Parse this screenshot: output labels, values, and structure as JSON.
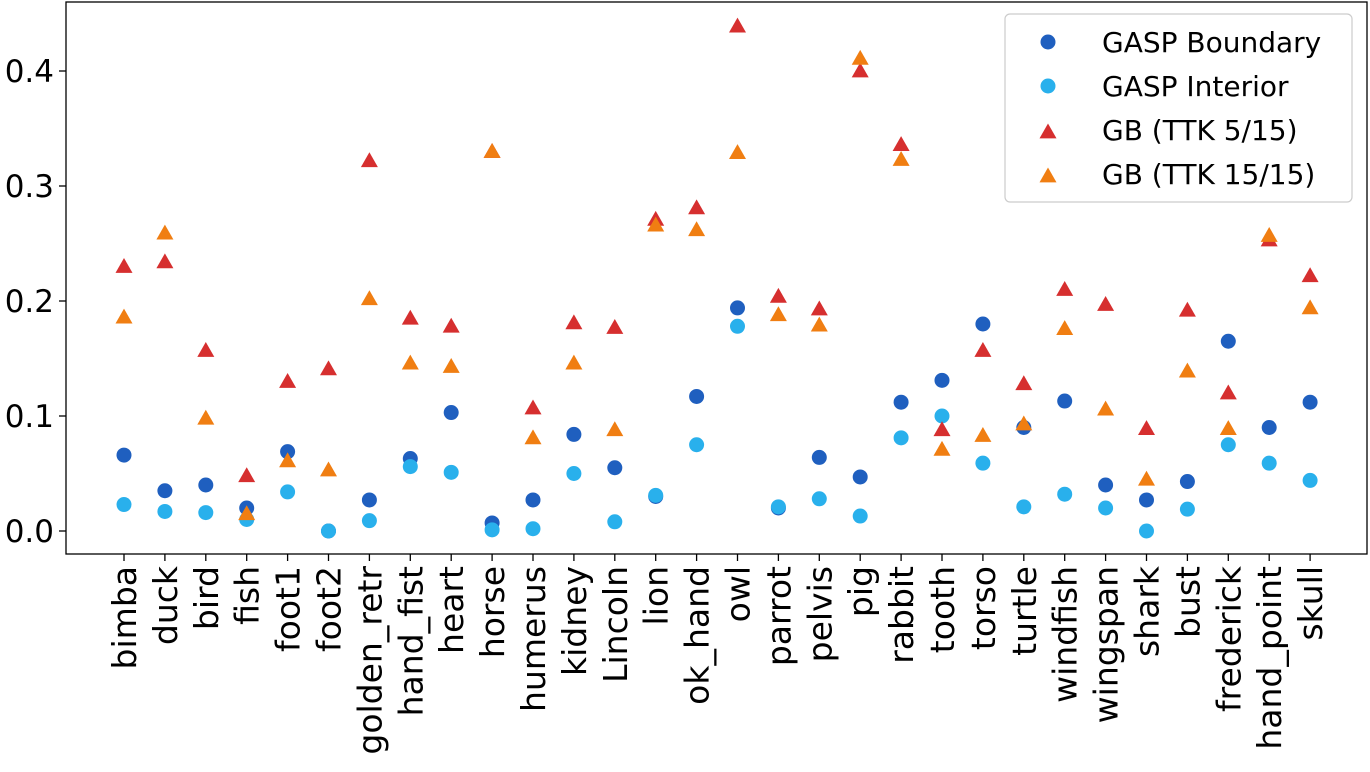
{
  "chart_data": {
    "type": "scatter",
    "title": "",
    "xlabel": "",
    "ylabel": "",
    "ylim": [
      -0.02,
      0.46
    ],
    "yticks": [
      0.0,
      0.1,
      0.2,
      0.3,
      0.4
    ],
    "ytick_labels": [
      "0.0",
      "0.1",
      "0.2",
      "0.3",
      "0.4"
    ],
    "grid": false,
    "legend_position": "top-right",
    "categories": [
      "bimba",
      "duck",
      "bird",
      "fish",
      "foot1",
      "foot2",
      "golden_retr",
      "hand_fist",
      "heart",
      "horse",
      "humerus",
      "kidney",
      "Lincoln",
      "lion",
      "ok_hand",
      "owl",
      "parrot",
      "pelvis",
      "pig",
      "rabbit",
      "tooth",
      "torso",
      "turtle",
      "windfish",
      "wingspan",
      "shark",
      "bust",
      "frederick",
      "hand_point",
      "skull"
    ],
    "series": [
      {
        "name": "GASP Boundary",
        "marker": "circle",
        "color": "#1f5fbf",
        "values": [
          0.066,
          0.035,
          0.04,
          0.02,
          0.069,
          0.0,
          0.027,
          0.063,
          0.103,
          0.007,
          0.027,
          0.084,
          0.055,
          0.03,
          0.117,
          0.194,
          0.02,
          0.064,
          0.047,
          0.112,
          0.131,
          0.18,
          0.09,
          0.113,
          0.04,
          0.027,
          0.043,
          0.165,
          0.09,
          0.112
        ]
      },
      {
        "name": "GASP Interior",
        "marker": "circle",
        "color": "#29b0ec",
        "values": [
          0.023,
          0.017,
          0.016,
          0.01,
          0.034,
          0.0,
          0.009,
          0.056,
          0.051,
          0.001,
          0.002,
          0.05,
          0.008,
          0.031,
          0.075,
          0.178,
          0.021,
          0.028,
          0.013,
          0.081,
          0.1,
          0.059,
          0.021,
          0.032,
          0.02,
          0.0,
          0.019,
          0.075,
          0.059,
          0.044
        ]
      },
      {
        "name": "GB (TTK 5/15)",
        "marker": "triangle",
        "color": "#d62f2f",
        "values": [
          0.23,
          0.234,
          0.157,
          0.048,
          0.13,
          0.141,
          0.322,
          0.185,
          0.178,
          0.33,
          0.107,
          0.181,
          0.177,
          0.271,
          0.281,
          0.439,
          0.204,
          0.193,
          0.4,
          0.336,
          0.088,
          0.157,
          0.128,
          0.21,
          0.197,
          0.089,
          0.192,
          0.12,
          0.253,
          0.222
        ]
      },
      {
        "name": "GB (TTK 15/15)",
        "marker": "triangle",
        "color": "#f07e12",
        "values": [
          0.186,
          0.259,
          0.098,
          0.015,
          0.061,
          0.053,
          0.202,
          0.146,
          0.143,
          0.33,
          0.081,
          0.146,
          0.088,
          0.266,
          0.262,
          0.329,
          0.188,
          0.179,
          0.411,
          0.323,
          0.071,
          0.083,
          0.093,
          0.176,
          0.106,
          0.045,
          0.139,
          0.089,
          0.257,
          0.194
        ]
      }
    ]
  }
}
